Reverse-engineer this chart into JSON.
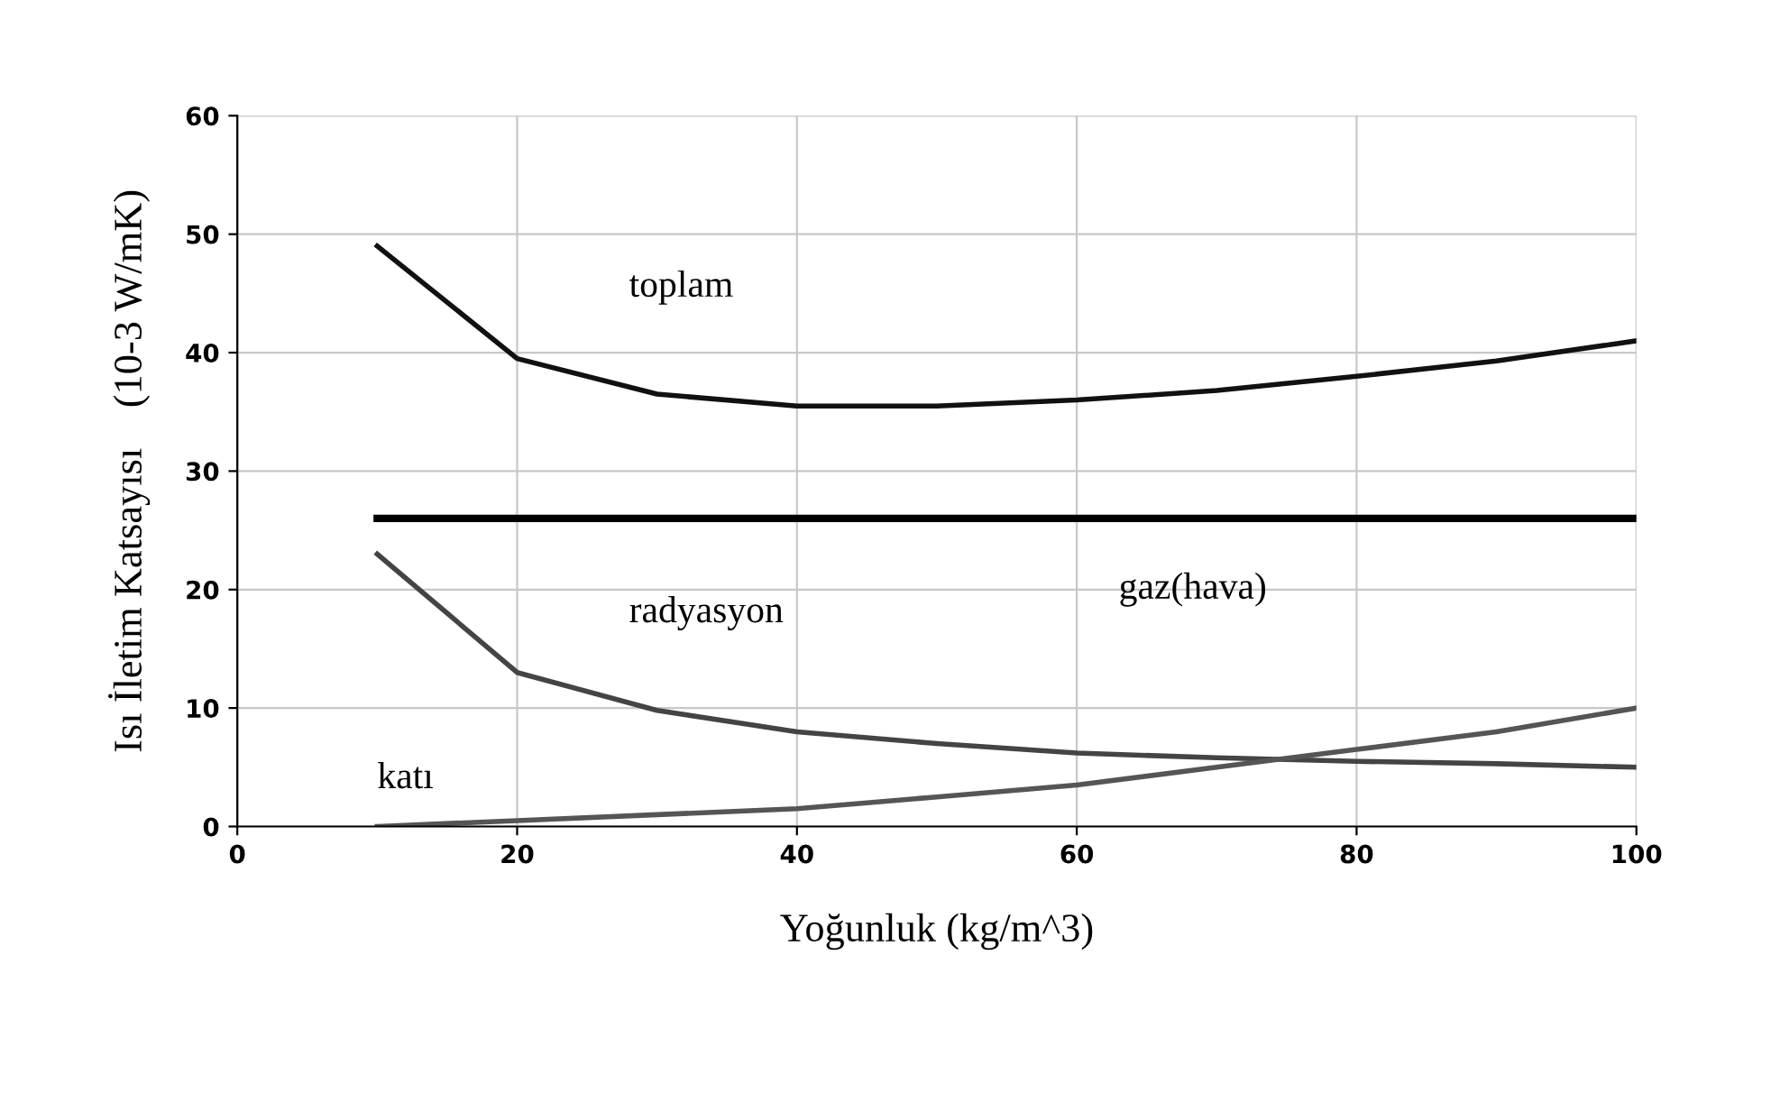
{
  "chart_data": {
    "type": "line",
    "xlabel": "Yoğunluk (kg/m^3)",
    "ylabel": "Isı İletim Katsayısı    (10-3 W/mK)",
    "x": [
      10,
      20,
      30,
      40,
      50,
      60,
      70,
      80,
      90,
      100
    ],
    "series": [
      {
        "name": "toplam",
        "color": "#111111",
        "values": [
          49,
          39.5,
          36.5,
          35.5,
          35.5,
          36,
          36.8,
          38,
          39.3,
          41
        ]
      },
      {
        "name": "gaz(hava)",
        "color": "#000000",
        "x": [
          10,
          100
        ],
        "values": [
          26,
          26
        ]
      },
      {
        "name": "radyasyon",
        "color": "#444444",
        "values": [
          23,
          13,
          9.8,
          8,
          7,
          6.2,
          5.8,
          5.5,
          5.3,
          5
        ]
      },
      {
        "name": "katı",
        "color": "#555555",
        "values": [
          0,
          0.5,
          1,
          1.5,
          2.5,
          3.5,
          5,
          6.5,
          8,
          10
        ]
      }
    ],
    "xlim": [
      0,
      100
    ],
    "xticks": [
      0,
      20,
      40,
      60,
      80,
      100
    ],
    "ylim": [
      0,
      60
    ],
    "yticks": [
      0,
      10,
      20,
      30,
      40,
      50,
      60
    ],
    "grid": true,
    "marker": "none",
    "line_style": "solid",
    "legend": false
  }
}
